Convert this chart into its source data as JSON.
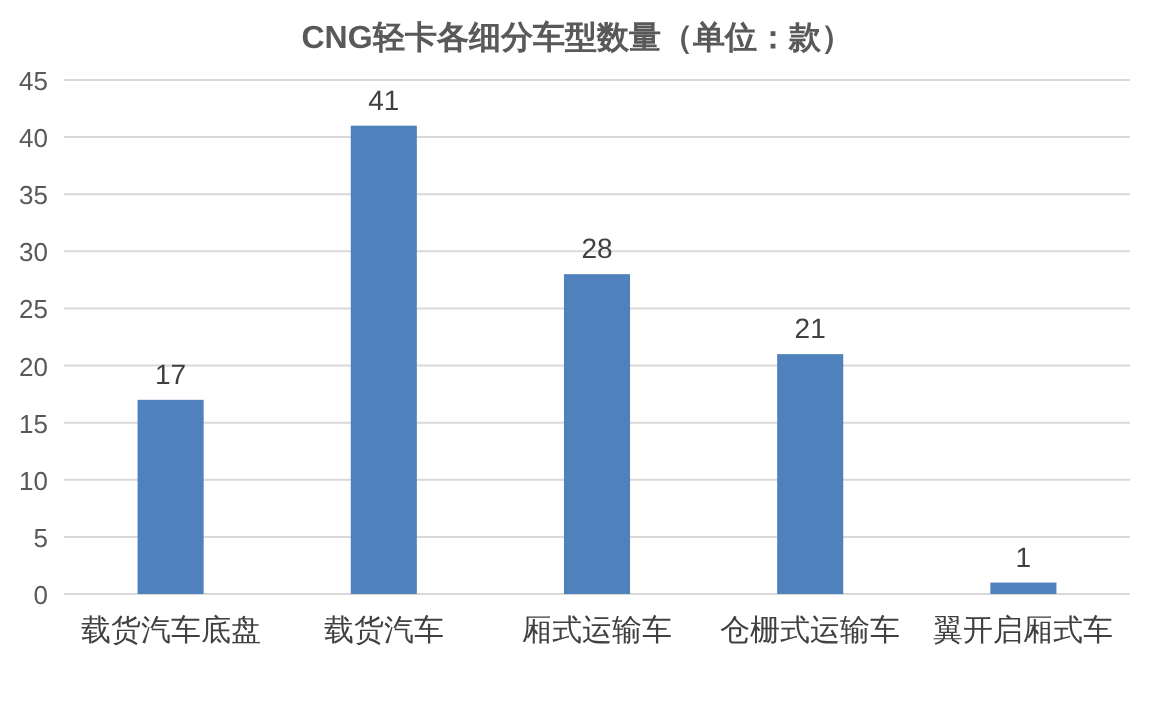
{
  "chart_data": {
    "type": "bar",
    "title": "CNG轻卡各细分车型数量（单位：款）",
    "categories": [
      "载货汽车底盘",
      "载货汽车",
      "厢式运输车",
      "仓栅式运输车",
      "翼开启厢式车"
    ],
    "values": [
      17,
      41,
      28,
      21,
      1
    ],
    "color": "#4f81bd",
    "ylim": [
      0,
      45
    ],
    "yticks": [
      0,
      5,
      10,
      15,
      20,
      25,
      30,
      35,
      40,
      45
    ],
    "grid": "y",
    "data_labels": true
  }
}
